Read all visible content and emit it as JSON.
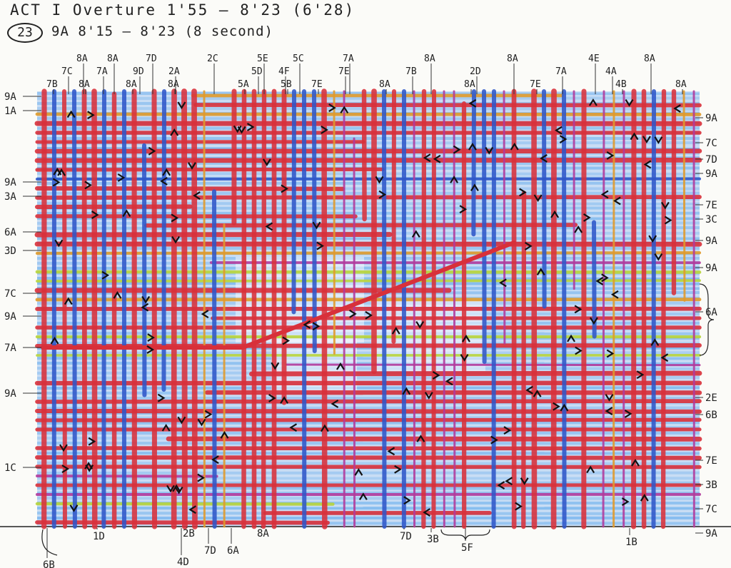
{
  "header": {
    "title": "ACT I  Overture  1'55 — 8'23  (6'28)",
    "cue_number": "23",
    "cue_detail": "9A  8'15 — 8'23  (8 second)"
  },
  "colors": {
    "red": "#d8303a",
    "blue": "#2f57c8",
    "light_blue": "#77b5ee",
    "yellow_green": "#b7d43a",
    "orange": "#e09a2a",
    "magenta": "#b13a9c",
    "ink": "#222222"
  },
  "top_labels": [
    "7B",
    "7C",
    "8A",
    "8A",
    "7A",
    "8A",
    "8A",
    "9D",
    "7D",
    "8A",
    "2A",
    "2C",
    "5A",
    "5D",
    "5E",
    "5B",
    "4F",
    "5C",
    "7E",
    "7E",
    "7A",
    "8A",
    "7B",
    "8A",
    "8A",
    "2D",
    "8A",
    "7E",
    "7A",
    "4E",
    "4B",
    "4A",
    "8A",
    "8A"
  ],
  "left_labels": [
    "9A",
    "1A",
    "9A",
    "3A",
    "6A",
    "3D",
    "7C",
    "9A",
    "7A",
    "9A",
    "1C"
  ],
  "right_labels": [
    "9A",
    "7C",
    "7D",
    "9A",
    "7E",
    "3C",
    "9A",
    "9A",
    "6A",
    "2E",
    "6B",
    "7E",
    "3B",
    "7C",
    "9A"
  ],
  "bottom_labels": [
    "1D",
    "6B",
    "2B",
    "4D",
    "7D",
    "6A",
    "8A",
    "7D",
    "3B",
    "5F",
    "1B"
  ]
}
